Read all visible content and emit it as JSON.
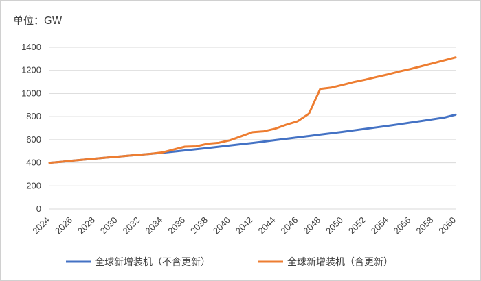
{
  "chart_data": {
    "type": "line",
    "unit_label": "单位：GW",
    "x": [
      2024,
      2025,
      2026,
      2027,
      2028,
      2029,
      2030,
      2031,
      2032,
      2033,
      2034,
      2035,
      2036,
      2037,
      2038,
      2039,
      2040,
      2041,
      2042,
      2043,
      2044,
      2045,
      2046,
      2047,
      2048,
      2049,
      2050,
      2051,
      2052,
      2053,
      2054,
      2055,
      2056,
      2057,
      2058,
      2059,
      2060
    ],
    "x_tick_labels": [
      "2024",
      "2026",
      "2028",
      "2030",
      "2032",
      "2034",
      "2036",
      "2038",
      "2040",
      "2042",
      "2044",
      "2046",
      "2048",
      "2050",
      "2052",
      "2054",
      "2056",
      "2058",
      "2060"
    ],
    "y_tick_labels": [
      "0",
      "200",
      "400",
      "600",
      "800",
      "1000",
      "1200",
      "1400"
    ],
    "ylim": [
      0,
      1400
    ],
    "grid": true,
    "legend_position": "bottom",
    "series": [
      {
        "name": "全球新增装机（不含更新）",
        "color": "#4472C4",
        "values": [
          400,
          408,
          418,
          427,
          436,
          445,
          453,
          462,
          470,
          478,
          487,
          497,
          507,
          517,
          528,
          539,
          550,
          561,
          572,
          584,
          596,
          608,
          620,
          632,
          644,
          656,
          668,
          681,
          694,
          707,
          720,
          734,
          748,
          762,
          777,
          792,
          817
        ]
      },
      {
        "name": "全球新增装机（含更新）",
        "color": "#ED7D31",
        "values": [
          400,
          408,
          418,
          427,
          436,
          445,
          453,
          462,
          470,
          478,
          490,
          515,
          540,
          543,
          565,
          573,
          595,
          630,
          665,
          673,
          695,
          730,
          760,
          825,
          1040,
          1052,
          1075,
          1100,
          1120,
          1143,
          1165,
          1190,
          1212,
          1237,
          1262,
          1287,
          1313
        ]
      }
    ]
  }
}
